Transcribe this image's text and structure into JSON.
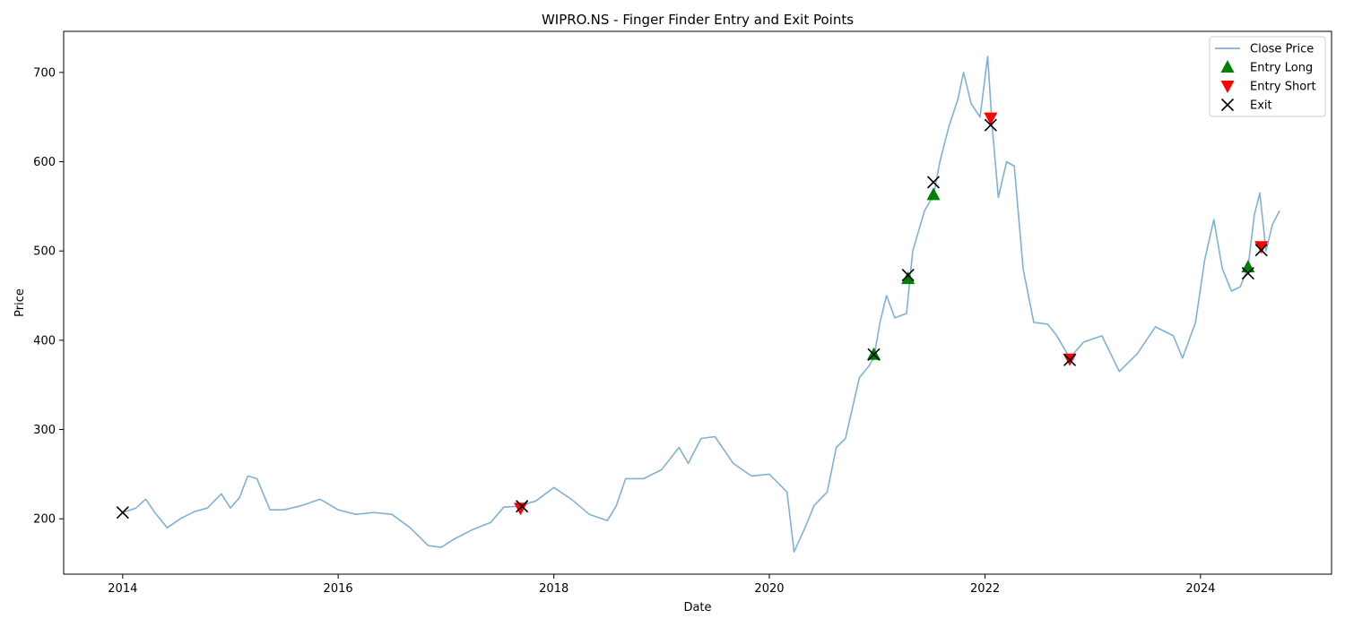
{
  "chart_data": {
    "type": "line",
    "title": "WIPRO.NS - Finger Finder Entry and Exit Points",
    "xlabel": "Date",
    "ylabel": "Price",
    "xlim": [
      "2013-06-15",
      "2025-03-20"
    ],
    "ylim": [
      138,
      746
    ],
    "x_ticks": [
      "2014",
      "2016",
      "2018",
      "2020",
      "2022",
      "2024"
    ],
    "y_ticks": [
      200,
      300,
      400,
      500,
      600,
      700
    ],
    "legend_position": "top-right",
    "colors": {
      "close": "#7fb1d6",
      "entry_long": "#008000",
      "entry_short": "#ff0000",
      "exit": "#000000"
    },
    "series": [
      {
        "name": "Close Price",
        "kind": "line",
        "points": [
          [
            "2014-01-01",
            207
          ],
          [
            "2014-02-15",
            212
          ],
          [
            "2014-03-20",
            222
          ],
          [
            "2014-04-20",
            207
          ],
          [
            "2014-06-01",
            190
          ],
          [
            "2014-07-15",
            200
          ],
          [
            "2014-09-01",
            208
          ],
          [
            "2014-10-15",
            212
          ],
          [
            "2014-12-01",
            228
          ],
          [
            "2015-01-01",
            212
          ],
          [
            "2015-02-01",
            224
          ],
          [
            "2015-03-01",
            248
          ],
          [
            "2015-04-01",
            245
          ],
          [
            "2015-05-15",
            210
          ],
          [
            "2015-07-01",
            210
          ],
          [
            "2015-09-01",
            215
          ],
          [
            "2015-11-01",
            222
          ],
          [
            "2016-01-01",
            210
          ],
          [
            "2016-03-01",
            205
          ],
          [
            "2016-05-01",
            207
          ],
          [
            "2016-07-01",
            205
          ],
          [
            "2016-09-01",
            190
          ],
          [
            "2016-11-01",
            170
          ],
          [
            "2016-12-15",
            168
          ],
          [
            "2017-02-01",
            178
          ],
          [
            "2017-04-01",
            188
          ],
          [
            "2017-06-01",
            196
          ],
          [
            "2017-07-15",
            213
          ],
          [
            "2017-09-01",
            214
          ],
          [
            "2017-11-01",
            220
          ],
          [
            "2018-01-01",
            235
          ],
          [
            "2018-03-01",
            222
          ],
          [
            "2018-05-01",
            205
          ],
          [
            "2018-07-01",
            198
          ],
          [
            "2018-08-01",
            215
          ],
          [
            "2018-09-01",
            245
          ],
          [
            "2018-11-01",
            245
          ],
          [
            "2019-01-01",
            255
          ],
          [
            "2019-03-01",
            280
          ],
          [
            "2019-04-01",
            262
          ],
          [
            "2019-05-15",
            290
          ],
          [
            "2019-07-01",
            292
          ],
          [
            "2019-09-01",
            262
          ],
          [
            "2019-11-01",
            248
          ],
          [
            "2020-01-01",
            250
          ],
          [
            "2020-03-01",
            230
          ],
          [
            "2020-03-25",
            163
          ],
          [
            "2020-05-01",
            190
          ],
          [
            "2020-06-01",
            215
          ],
          [
            "2020-07-15",
            230
          ],
          [
            "2020-08-15",
            280
          ],
          [
            "2020-09-15",
            290
          ],
          [
            "2020-11-01",
            358
          ],
          [
            "2020-12-01",
            370
          ],
          [
            "2020-12-20",
            380
          ],
          [
            "2021-01-10",
            420
          ],
          [
            "2021-02-01",
            450
          ],
          [
            "2021-03-01",
            425
          ],
          [
            "2021-04-10",
            430
          ],
          [
            "2021-05-01",
            500
          ],
          [
            "2021-06-10",
            545
          ],
          [
            "2021-07-10",
            562
          ],
          [
            "2021-08-01",
            600
          ],
          [
            "2021-09-01",
            640
          ],
          [
            "2021-10-01",
            670
          ],
          [
            "2021-10-20",
            700
          ],
          [
            "2021-11-15",
            665
          ],
          [
            "2021-12-15",
            650
          ],
          [
            "2022-01-10",
            718
          ],
          [
            "2022-01-25",
            640
          ],
          [
            "2022-02-15",
            560
          ],
          [
            "2022-03-15",
            600
          ],
          [
            "2022-04-10",
            595
          ],
          [
            "2022-05-10",
            480
          ],
          [
            "2022-06-15",
            420
          ],
          [
            "2022-08-01",
            418
          ],
          [
            "2022-09-01",
            405
          ],
          [
            "2022-10-15",
            380
          ],
          [
            "2022-12-01",
            398
          ],
          [
            "2023-02-01",
            405
          ],
          [
            "2023-04-01",
            365
          ],
          [
            "2023-06-01",
            385
          ],
          [
            "2023-08-01",
            415
          ],
          [
            "2023-10-01",
            405
          ],
          [
            "2023-11-01",
            380
          ],
          [
            "2023-12-15",
            420
          ],
          [
            "2024-01-15",
            490
          ],
          [
            "2024-02-15",
            535
          ],
          [
            "2024-03-15",
            480
          ],
          [
            "2024-04-15",
            455
          ],
          [
            "2024-05-15",
            460
          ],
          [
            "2024-06-10",
            482
          ],
          [
            "2024-07-01",
            540
          ],
          [
            "2024-07-20",
            565
          ],
          [
            "2024-08-10",
            500
          ],
          [
            "2024-09-01",
            530
          ],
          [
            "2024-09-25",
            545
          ]
        ]
      },
      {
        "name": "Entry Long",
        "kind": "marker",
        "marker": "triangle-up",
        "points": [
          [
            "2020-12-20",
            384
          ],
          [
            "2021-04-15",
            469
          ],
          [
            "2021-07-10",
            563
          ],
          [
            "2024-06-10",
            482
          ]
        ]
      },
      {
        "name": "Entry Short",
        "kind": "marker",
        "marker": "triangle-down",
        "points": [
          [
            "2017-09-10",
            212
          ],
          [
            "2022-01-20",
            649
          ],
          [
            "2022-10-15",
            379
          ],
          [
            "2024-07-25",
            505
          ]
        ]
      },
      {
        "name": "Exit",
        "kind": "marker",
        "marker": "x",
        "points": [
          [
            "2014-01-01",
            207
          ],
          [
            "2017-09-15",
            214
          ],
          [
            "2020-12-20",
            384
          ],
          [
            "2021-04-15",
            473
          ],
          [
            "2021-07-10",
            577
          ],
          [
            "2022-01-20",
            641
          ],
          [
            "2022-10-15",
            378
          ],
          [
            "2024-06-10",
            475
          ],
          [
            "2024-07-25",
            501
          ]
        ]
      }
    ]
  }
}
